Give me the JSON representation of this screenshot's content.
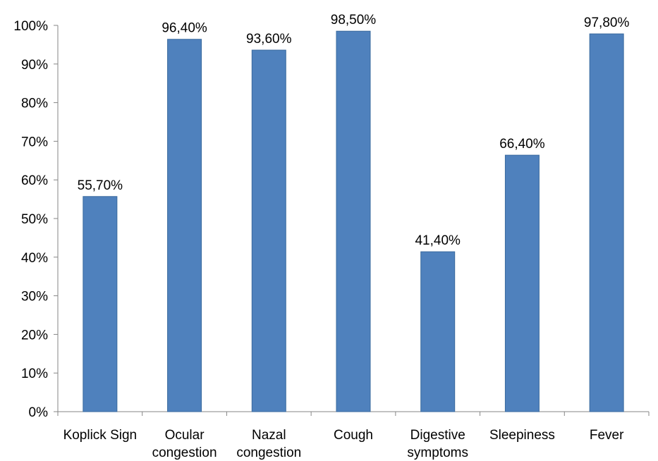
{
  "chart_data": {
    "type": "bar",
    "categories": [
      [
        "Koplick Sign"
      ],
      [
        "Ocular",
        "congestion"
      ],
      [
        "Nazal",
        "congestion"
      ],
      [
        "Cough"
      ],
      [
        "Digestive",
        "symptoms"
      ],
      [
        "Sleepiness"
      ],
      [
        "Fever"
      ]
    ],
    "values": [
      55.7,
      96.4,
      93.6,
      98.5,
      41.4,
      66.4,
      97.8
    ],
    "data_labels": [
      "55,70%",
      "96,40%",
      "93,60%",
      "98,50%",
      "41,40%",
      "66,40%",
      "97,80%"
    ],
    "y_ticks": [
      "0%",
      "10%",
      "20%",
      "30%",
      "40%",
      "50%",
      "60%",
      "70%",
      "80%",
      "90%",
      "100%"
    ],
    "ylim": [
      0,
      100
    ],
    "grid": false,
    "legend": "none",
    "bar_color": "#4F81BD",
    "bar_edge_color": "#3A6A9E",
    "axis_color": "#868686"
  }
}
